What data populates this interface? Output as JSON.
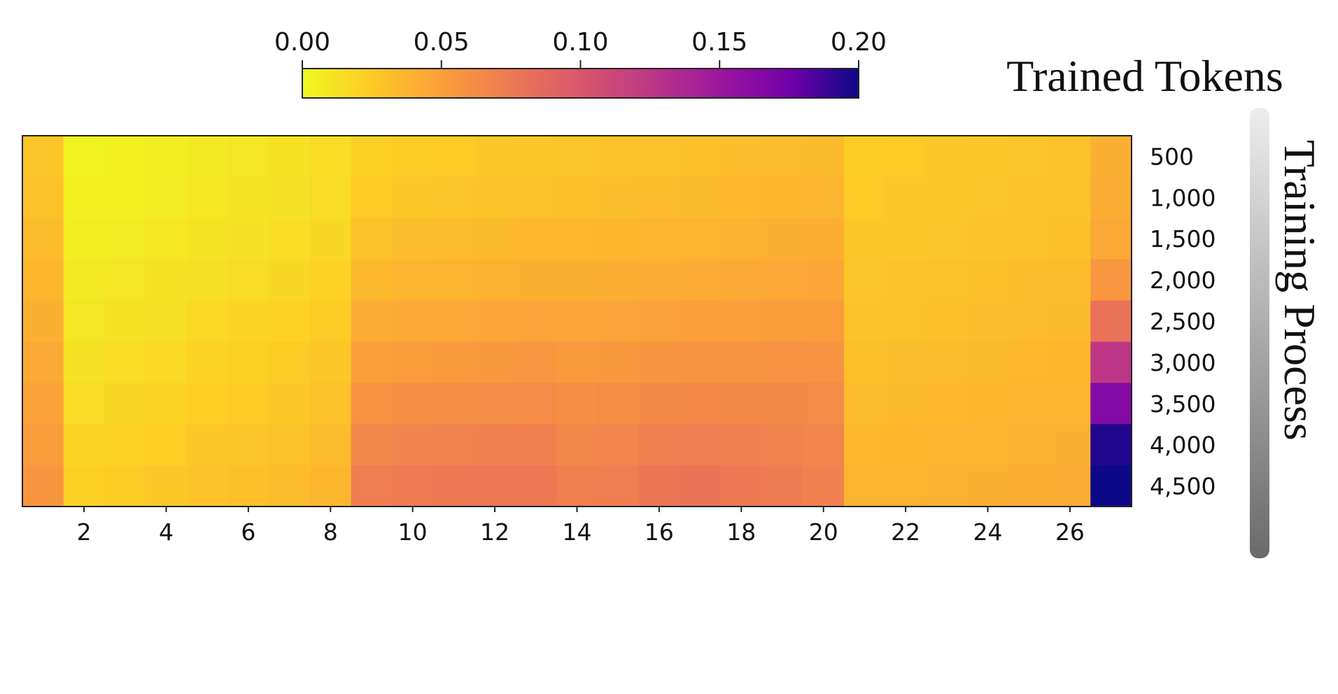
{
  "chart_data": {
    "type": "heatmap",
    "title": "Trained Tokens",
    "xlabel": "",
    "ylabel": "Training Process",
    "colormap": "plasma_r",
    "vmin": 0.0,
    "vmax": 0.2,
    "colorbar_ticks": [
      "0.00",
      "0.05",
      "0.10",
      "0.15",
      "0.20"
    ],
    "x_categories": [
      1,
      2,
      3,
      4,
      5,
      6,
      7,
      8,
      9,
      10,
      11,
      12,
      13,
      14,
      15,
      16,
      17,
      18,
      19,
      20,
      21,
      22,
      23,
      24,
      25,
      26,
      27
    ],
    "x_tick_labels": [
      "2",
      "4",
      "6",
      "8",
      "10",
      "12",
      "14",
      "16",
      "18",
      "20",
      "22",
      "24",
      "26"
    ],
    "y_categories": [
      "500",
      "1,000",
      "1,500",
      "2,000",
      "2,500",
      "3,000",
      "3,500",
      "4,000",
      "4,500"
    ],
    "values": [
      [
        0.028,
        0.003,
        0.004,
        0.006,
        0.008,
        0.01,
        0.012,
        0.015,
        0.022,
        0.024,
        0.025,
        0.026,
        0.027,
        0.028,
        0.029,
        0.03,
        0.031,
        0.032,
        0.033,
        0.034,
        0.024,
        0.025,
        0.026,
        0.027,
        0.028,
        0.029,
        0.04
      ],
      [
        0.03,
        0.004,
        0.005,
        0.007,
        0.009,
        0.011,
        0.013,
        0.016,
        0.025,
        0.027,
        0.028,
        0.029,
        0.03,
        0.031,
        0.032,
        0.033,
        0.034,
        0.035,
        0.036,
        0.037,
        0.025,
        0.026,
        0.027,
        0.028,
        0.029,
        0.03,
        0.042
      ],
      [
        0.033,
        0.006,
        0.007,
        0.009,
        0.011,
        0.013,
        0.015,
        0.018,
        0.03,
        0.032,
        0.033,
        0.034,
        0.035,
        0.035,
        0.036,
        0.037,
        0.038,
        0.039,
        0.04,
        0.041,
        0.026,
        0.027,
        0.028,
        0.029,
        0.03,
        0.031,
        0.045
      ],
      [
        0.036,
        0.008,
        0.01,
        0.012,
        0.014,
        0.016,
        0.018,
        0.021,
        0.035,
        0.037,
        0.038,
        0.039,
        0.04,
        0.04,
        0.041,
        0.042,
        0.043,
        0.044,
        0.045,
        0.046,
        0.028,
        0.029,
        0.03,
        0.031,
        0.032,
        0.033,
        0.055
      ],
      [
        0.04,
        0.01,
        0.012,
        0.014,
        0.017,
        0.019,
        0.021,
        0.024,
        0.042,
        0.044,
        0.045,
        0.046,
        0.047,
        0.046,
        0.047,
        0.049,
        0.05,
        0.05,
        0.051,
        0.052,
        0.029,
        0.03,
        0.031,
        0.032,
        0.033,
        0.034,
        0.08
      ],
      [
        0.044,
        0.013,
        0.015,
        0.017,
        0.02,
        0.022,
        0.024,
        0.027,
        0.05,
        0.052,
        0.053,
        0.054,
        0.055,
        0.053,
        0.054,
        0.056,
        0.057,
        0.057,
        0.058,
        0.058,
        0.031,
        0.032,
        0.033,
        0.034,
        0.035,
        0.036,
        0.125
      ],
      [
        0.048,
        0.016,
        0.018,
        0.02,
        0.023,
        0.025,
        0.027,
        0.03,
        0.058,
        0.06,
        0.061,
        0.062,
        0.063,
        0.06,
        0.061,
        0.064,
        0.065,
        0.064,
        0.064,
        0.063,
        0.033,
        0.034,
        0.035,
        0.036,
        0.037,
        0.038,
        0.165
      ],
      [
        0.052,
        0.019,
        0.021,
        0.023,
        0.026,
        0.028,
        0.03,
        0.033,
        0.066,
        0.068,
        0.069,
        0.07,
        0.07,
        0.066,
        0.067,
        0.071,
        0.072,
        0.07,
        0.069,
        0.067,
        0.035,
        0.036,
        0.037,
        0.038,
        0.039,
        0.04,
        0.195
      ],
      [
        0.056,
        0.022,
        0.024,
        0.026,
        0.029,
        0.031,
        0.033,
        0.036,
        0.072,
        0.074,
        0.075,
        0.076,
        0.076,
        0.071,
        0.072,
        0.077,
        0.079,
        0.075,
        0.073,
        0.07,
        0.037,
        0.038,
        0.039,
        0.04,
        0.041,
        0.042,
        0.2
      ]
    ]
  }
}
